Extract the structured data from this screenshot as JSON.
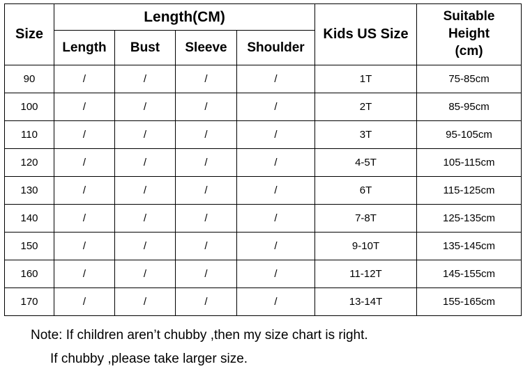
{
  "colors": {
    "background": "#ffffff",
    "border": "#000000",
    "text": "#000000"
  },
  "table": {
    "headers": {
      "size": "Size",
      "length_group": "Length(CM)",
      "sub": [
        "Length",
        "Bust",
        "Sleeve",
        "Shoulder"
      ],
      "kids_us_size": "Kids US Size",
      "suitable_height": "Suitable\nHeight\n(cm)"
    },
    "rows": [
      {
        "size": "90",
        "length": "/",
        "bust": "/",
        "sleeve": "/",
        "shoulder": "/",
        "kids": "1T",
        "height": "75-85cm"
      },
      {
        "size": "100",
        "length": "/",
        "bust": "/",
        "sleeve": "/",
        "shoulder": "/",
        "kids": "2T",
        "height": "85-95cm"
      },
      {
        "size": "110",
        "length": "/",
        "bust": "/",
        "sleeve": "/",
        "shoulder": "/",
        "kids": "3T",
        "height": "95-105cm"
      },
      {
        "size": "120",
        "length": "/",
        "bust": "/",
        "sleeve": "/",
        "shoulder": "/",
        "kids": "4-5T",
        "height": "105-115cm"
      },
      {
        "size": "130",
        "length": "/",
        "bust": "/",
        "sleeve": "/",
        "shoulder": "/",
        "kids": "6T",
        "height": "115-125cm"
      },
      {
        "size": "140",
        "length": "/",
        "bust": "/",
        "sleeve": "/",
        "shoulder": "/",
        "kids": "7-8T",
        "height": "125-135cm"
      },
      {
        "size": "150",
        "length": "/",
        "bust": "/",
        "sleeve": "/",
        "shoulder": "/",
        "kids": "9-10T",
        "height": "135-145cm"
      },
      {
        "size": "160",
        "length": "/",
        "bust": "/",
        "sleeve": "/",
        "shoulder": "/",
        "kids": "11-12T",
        "height": "145-155cm"
      },
      {
        "size": "170",
        "length": "/",
        "bust": "/",
        "sleeve": "/",
        "shoulder": "/",
        "kids": "13-14T",
        "height": "155-165cm"
      }
    ]
  },
  "note": {
    "line1": "Note: If children aren’t chubby ,then my size chart is right.",
    "line2": "If chubby ,please take larger size."
  },
  "chart_data": {
    "type": "table",
    "title": "",
    "columns": [
      "Size",
      "Length(CM) - Length",
      "Length(CM) - Bust",
      "Length(CM) - Sleeve",
      "Length(CM) - Shoulder",
      "Kids US Size",
      "Suitable Height (cm)"
    ],
    "rows": [
      [
        "90",
        "/",
        "/",
        "/",
        "/",
        "1T",
        "75-85cm"
      ],
      [
        "100",
        "/",
        "/",
        "/",
        "/",
        "2T",
        "85-95cm"
      ],
      [
        "110",
        "/",
        "/",
        "/",
        "/",
        "3T",
        "95-105cm"
      ],
      [
        "120",
        "/",
        "/",
        "/",
        "/",
        "4-5T",
        "105-115cm"
      ],
      [
        "130",
        "/",
        "/",
        "/",
        "/",
        "6T",
        "115-125cm"
      ],
      [
        "140",
        "/",
        "/",
        "/",
        "/",
        "7-8T",
        "125-135cm"
      ],
      [
        "150",
        "/",
        "/",
        "/",
        "/",
        "9-10T",
        "135-145cm"
      ],
      [
        "160",
        "/",
        "/",
        "/",
        "/",
        "11-12T",
        "145-155cm"
      ],
      [
        "170",
        "/",
        "/",
        "/",
        "/",
        "13-14T",
        "155-165cm"
      ]
    ]
  }
}
